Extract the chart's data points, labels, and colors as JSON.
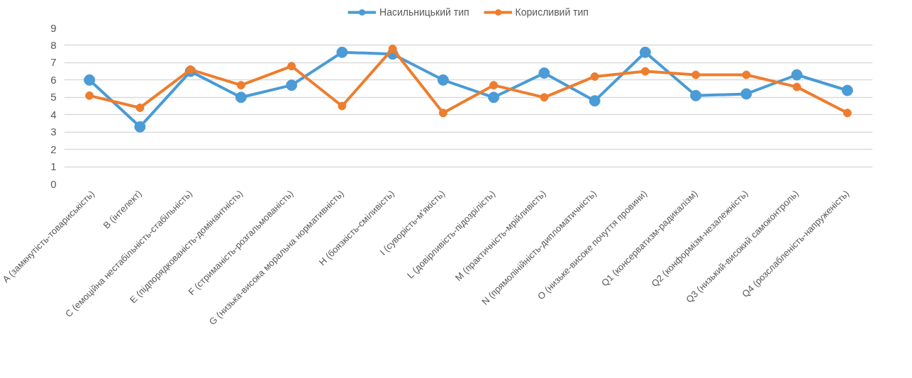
{
  "chart_data": {
    "type": "line",
    "categories": [
      "A (замкнутість-товариськість)",
      "B (інтелект)",
      "C (емоційна нестабільність-стабільність)",
      "E (підпорядкованість-домінантність)",
      "F (стриманість-розгальмованість)",
      "G (низька-висока моральна нормативність)",
      "H (боязкість-сміливість)",
      "I (суворість-м’якість)",
      "L (довірливість-підозрілість)",
      "M (практичність-мрійливість)",
      "N (прямолінійність-дипломатичність)",
      "O (низьке-високе почуття провини)",
      "Q1 (консерватизм-радикалізм)",
      "Q2 (конформізм-незалежність)",
      "Q3 (низький-високий самоконтроль)",
      "Q4 (розслабленість-напруженість)"
    ],
    "series": [
      {
        "name": "Насильницький тип",
        "color": "#4a9bd6",
        "values": [
          6.0,
          3.3,
          6.5,
          5.0,
          5.7,
          7.6,
          7.5,
          6.0,
          5.0,
          6.4,
          4.8,
          7.6,
          5.1,
          5.2,
          6.3,
          5.4
        ]
      },
      {
        "name": "Корисливий тип",
        "color": "#ee7d2d",
        "values": [
          5.1,
          4.4,
          6.6,
          5.7,
          6.8,
          4.5,
          7.8,
          4.1,
          5.7,
          5.0,
          6.2,
          6.5,
          6.3,
          6.3,
          5.6,
          4.1
        ]
      }
    ],
    "ylim": [
      0,
      9
    ],
    "yticks": [
      0,
      1,
      2,
      3,
      4,
      5,
      6,
      7,
      8,
      9
    ],
    "grid": "y",
    "legend": "top",
    "marker": "circle",
    "line_style": "solid"
  }
}
